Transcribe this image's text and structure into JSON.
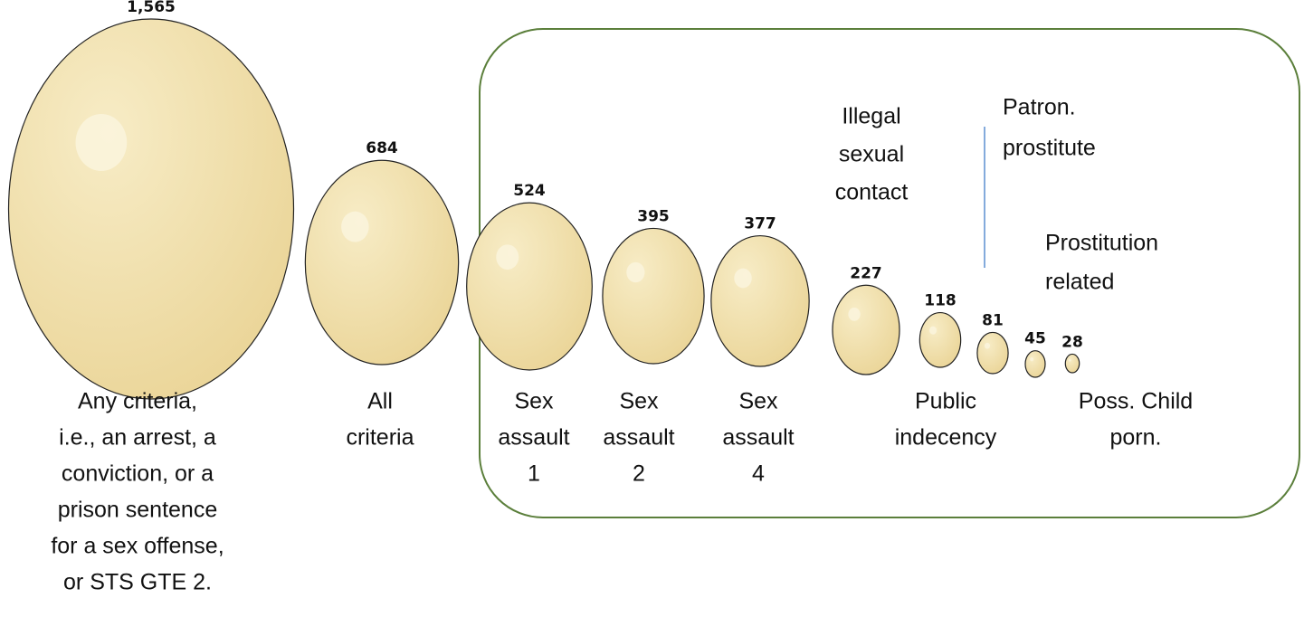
{
  "chart_data": {
    "type": "bubble",
    "categories": [
      [
        "Any criteria,",
        "i.e., an arrest, a",
        "conviction, or a",
        "prison sentence",
        "for a sex offense,",
        "or STS GTE 2."
      ],
      [
        "All",
        "criteria"
      ],
      [
        "Sex",
        "assault",
        "1"
      ],
      [
        "Sex",
        "assault",
        "2"
      ],
      [
        "Sex",
        "assault",
        "4"
      ],
      [
        "Illegal",
        "sexual",
        "contact"
      ],
      [
        "Public",
        "indecency"
      ],
      [
        "Patron.",
        "prostitute"
      ],
      [
        "Prostitution",
        "related"
      ],
      [
        "Poss. Child",
        "porn."
      ]
    ],
    "values": [
      1565,
      684,
      524,
      395,
      377,
      227,
      118,
      81,
      45,
      28
    ],
    "value_labels": [
      "1,565",
      "684",
      "524",
      "395",
      "377",
      "227",
      "118",
      "81",
      "45",
      "28"
    ],
    "color": "#f2e2a8"
  }
}
